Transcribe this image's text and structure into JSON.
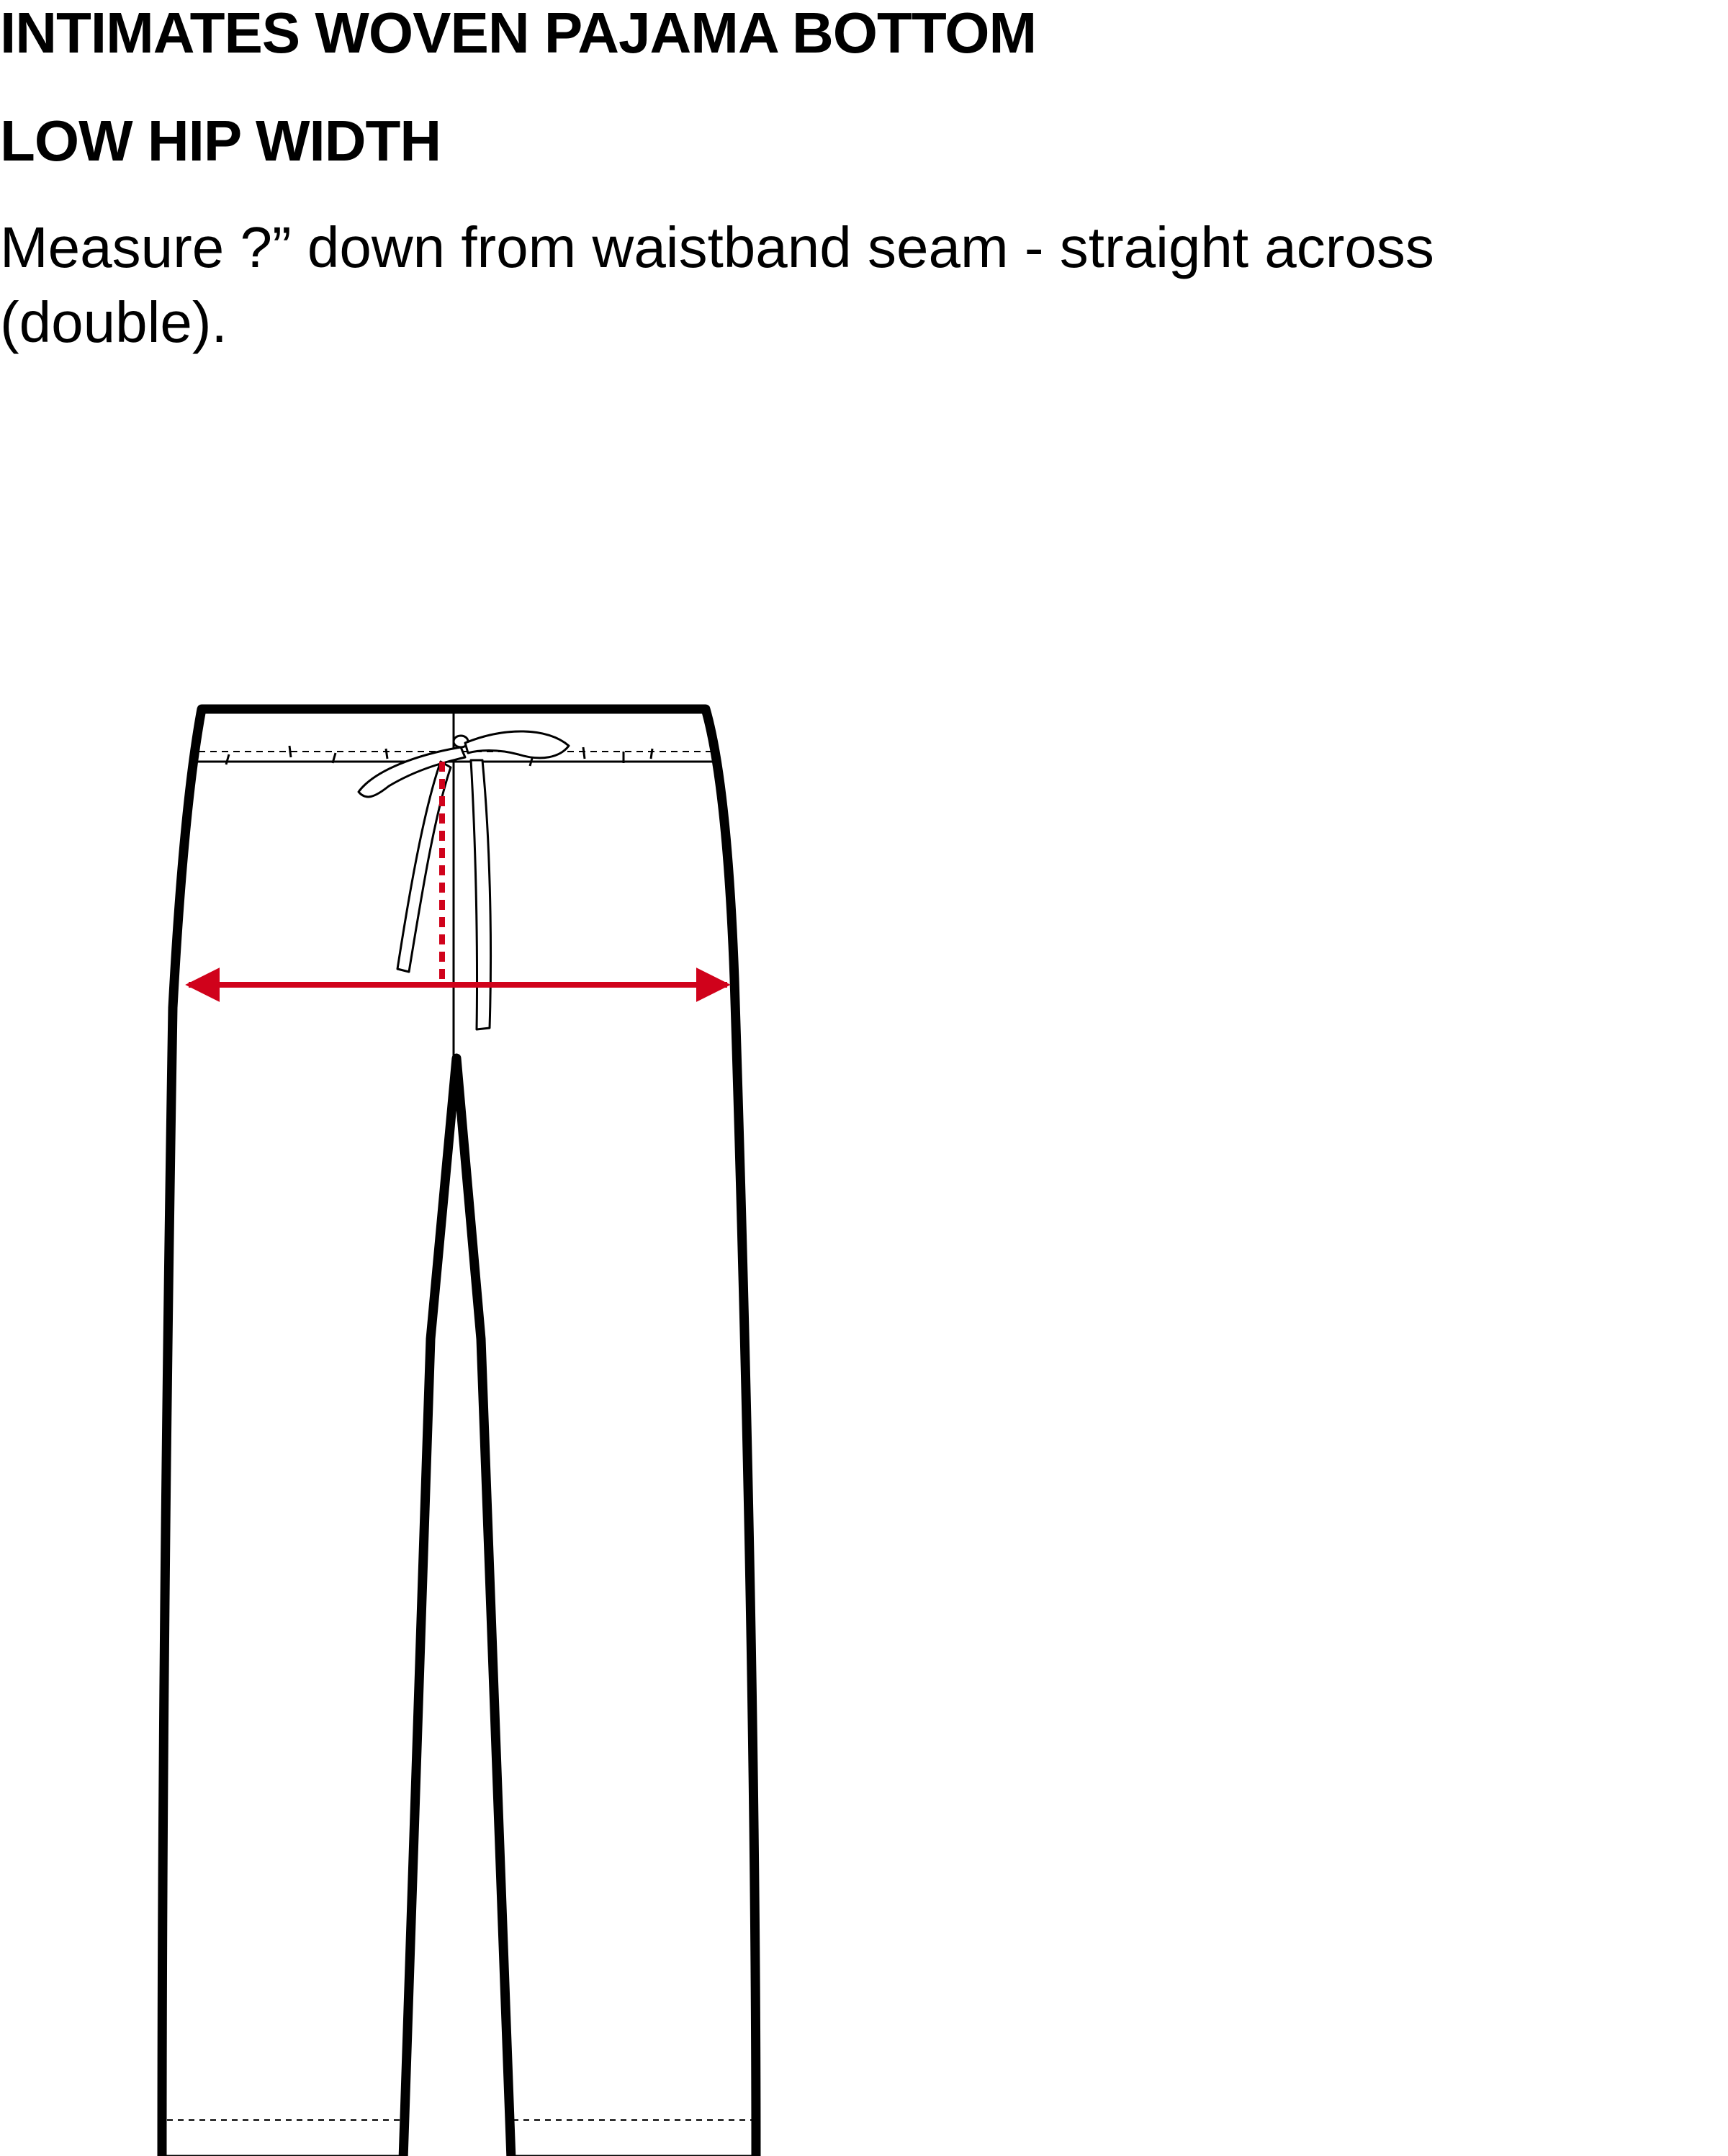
{
  "header": {
    "title": "INTIMATES WOVEN PAJAMA BOTTOM",
    "subtitle": "LOW HIP WIDTH",
    "instructions": "Measure ?” down from waistband seam - straight across (double)."
  },
  "colors": {
    "outline": "#000000",
    "measure_line": "#d0021b",
    "background": "#ffffff"
  }
}
